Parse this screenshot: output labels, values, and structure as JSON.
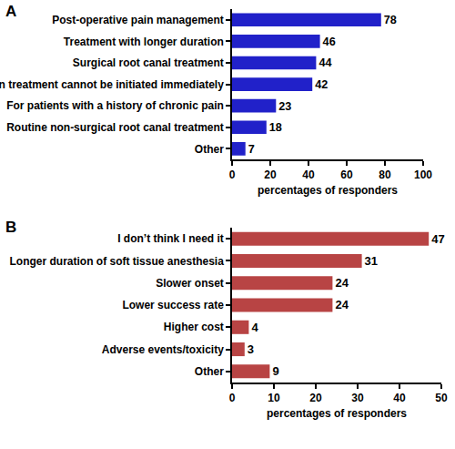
{
  "chart_data": [
    {
      "type": "bar",
      "title": "A",
      "orientation": "horizontal",
      "categories": [
        "Post-operative pain management",
        "Treatment with longer duration",
        "Surgical root canal treatment",
        "When treatment cannot be initiated immediately",
        "For patients with a history of chronic pain",
        "Routine non-surgical root canal treatment",
        "Other"
      ],
      "values": [
        78,
        46,
        44,
        42,
        23,
        18,
        7
      ],
      "color": "#2121c9",
      "xlabel": "percentages of responders",
      "xlim": [
        0,
        100
      ],
      "xticks": [
        0,
        20,
        40,
        60,
        80,
        100
      ],
      "grid": false,
      "data_labels": true
    },
    {
      "type": "bar",
      "title": "B",
      "orientation": "horizontal",
      "categories": [
        "I don’t think I need it",
        "Longer duration of soft tissue anesthesia",
        "Slower onset",
        "Lower success rate",
        "Higher cost",
        "Adverse events/toxicity",
        "Other"
      ],
      "values": [
        47,
        31,
        24,
        24,
        4,
        3,
        9
      ],
      "color": "#b84444",
      "xlabel": "percentages of responders",
      "xlim": [
        0,
        50
      ],
      "xticks": [
        0,
        10,
        20,
        30,
        40,
        50
      ],
      "grid": false,
      "data_labels": true
    }
  ]
}
